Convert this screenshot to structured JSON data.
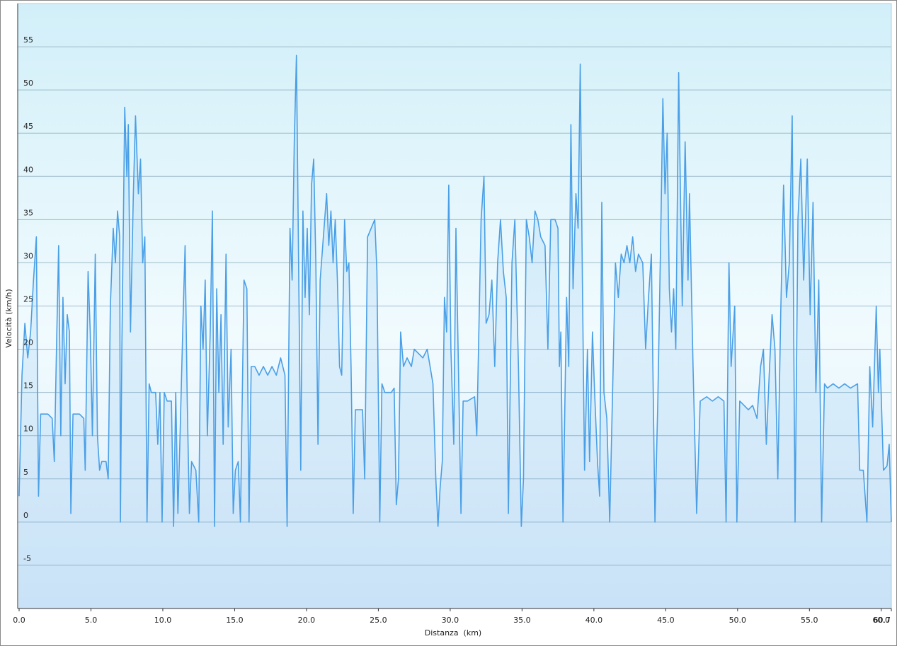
{
  "chart_data": {
    "type": "area",
    "x_label": "Distanza  (km)",
    "y_label": "Velocità (km/h)",
    "xlim": [
      0,
      60.7
    ],
    "ylim": [
      -10,
      60
    ],
    "xticks": [
      {
        "value": 0,
        "label": "0.0"
      },
      {
        "value": 5,
        "label": "5.0"
      },
      {
        "value": 10,
        "label": "10.0"
      },
      {
        "value": 15,
        "label": "15.0"
      },
      {
        "value": 20,
        "label": "20.0"
      },
      {
        "value": 25,
        "label": "25.0"
      },
      {
        "value": 30,
        "label": "30.0"
      },
      {
        "value": 35,
        "label": "35.0"
      },
      {
        "value": 40,
        "label": "40.0"
      },
      {
        "value": 45,
        "label": "45.0"
      },
      {
        "value": 50,
        "label": "50.0"
      },
      {
        "value": 55,
        "label": "55.0"
      },
      {
        "value": 60,
        "label": "60.0"
      },
      {
        "value": 60.7,
        "label": "60.7"
      }
    ],
    "yticks": [
      -5,
      0,
      5,
      10,
      15,
      20,
      25,
      30,
      35,
      40,
      45,
      50,
      55
    ],
    "grid": true,
    "color": "#4a9fe6",
    "x": [
      0,
      0.2,
      0.4,
      0.6,
      0.8,
      1.0,
      1.2,
      1.35,
      1.5,
      2.0,
      2.3,
      2.45,
      2.6,
      2.75,
      2.9,
      3.05,
      3.2,
      3.35,
      3.5,
      3.6,
      3.75,
      4.2,
      4.5,
      4.6,
      4.8,
      4.95,
      5.1,
      5.3,
      5.45,
      5.6,
      5.75,
      6.05,
      6.2,
      6.35,
      6.55,
      6.7,
      6.85,
      7.0,
      7.05,
      7.15,
      7.35,
      7.5,
      7.6,
      7.75,
      7.95,
      8.1,
      8.3,
      8.45,
      8.6,
      8.75,
      8.9,
      9.05,
      9.2,
      9.5,
      9.65,
      9.8,
      9.95,
      10.1,
      10.3,
      10.6,
      10.75,
      10.9,
      11.05,
      11.2,
      11.4,
      11.55,
      11.7,
      11.85,
      12.0,
      12.3,
      12.5,
      12.65,
      12.8,
      12.95,
      13.1,
      13.3,
      13.45,
      13.6,
      13.75,
      13.9,
      14.05,
      14.2,
      14.4,
      14.55,
      14.75,
      14.9,
      15.05,
      15.25,
      15.4,
      15.65,
      15.85,
      16.0,
      16.15,
      16.4,
      16.7,
      17.0,
      17.3,
      17.6,
      17.9,
      18.2,
      18.5,
      18.65,
      18.85,
      19.0,
      19.15,
      19.3,
      19.45,
      19.6,
      19.75,
      19.9,
      20.05,
      20.2,
      20.35,
      20.5,
      20.65,
      20.8,
      20.95,
      21.4,
      21.55,
      21.7,
      21.85,
      22.0,
      22.15,
      22.3,
      22.45,
      22.65,
      22.8,
      22.95,
      23.1,
      23.25,
      23.4,
      23.9,
      24.05,
      24.25,
      24.75,
      24.9,
      25.1,
      25.25,
      25.45,
      25.9,
      26.1,
      26.25,
      26.4,
      26.55,
      26.75,
      27.0,
      27.3,
      27.5,
      28.1,
      28.4,
      28.6,
      28.8,
      29.0,
      29.15,
      29.3,
      29.45,
      29.6,
      29.75,
      29.9,
      30.05,
      30.25,
      30.4,
      30.55,
      30.75,
      30.9,
      31.2,
      31.7,
      31.85,
      32.15,
      32.35,
      32.5,
      32.7,
      32.9,
      33.1,
      33.3,
      33.5,
      33.7,
      33.9,
      34.05,
      34.3,
      34.5,
      34.75,
      34.95,
      35.1,
      35.3,
      35.5,
      35.7,
      35.9,
      36.1,
      36.3,
      36.6,
      36.8,
      37.0,
      37.3,
      37.5,
      37.6,
      37.7,
      37.85,
      38.1,
      38.25,
      38.4,
      38.55,
      38.75,
      38.9,
      39.05,
      39.2,
      39.35,
      39.55,
      39.7,
      39.9,
      40.05,
      40.25,
      40.4,
      40.55,
      40.7,
      40.9,
      41.1,
      41.3,
      41.5,
      41.7,
      41.9,
      42.1,
      42.3,
      42.5,
      42.7,
      42.9,
      43.1,
      43.4,
      43.6,
      43.8,
      44.0,
      44.25,
      44.45,
      44.65,
      44.8,
      44.95,
      45.1,
      45.25,
      45.4,
      45.55,
      45.7,
      45.9,
      46.05,
      46.15,
      46.35,
      46.55,
      46.65,
      46.9,
      47.15,
      47.4,
      47.85,
      48.25,
      48.65,
      49.05,
      49.2,
      49.4,
      49.55,
      49.8,
      49.95,
      50.15,
      50.45,
      50.75,
      51.05,
      51.35,
      51.6,
      51.8,
      52.0,
      52.2,
      52.4,
      52.6,
      52.8,
      53.0,
      53.2,
      53.4,
      53.6,
      53.8,
      54.0,
      54.2,
      54.4,
      54.6,
      54.85,
      55.05,
      55.25,
      55.45,
      55.65,
      55.85,
      56.05,
      56.25,
      56.65,
      57.05,
      57.45,
      57.85,
      58.35,
      58.5,
      58.75,
      59.0,
      59.2,
      59.4,
      59.65,
      59.8,
      59.9,
      60.15,
      60.4,
      60.55,
      60.7
    ],
    "values": [
      3,
      17,
      23,
      19,
      22,
      28,
      33,
      3,
      12.5,
      12.5,
      12,
      7,
      20,
      32,
      10,
      26,
      16,
      24,
      22,
      1,
      12.5,
      12.5,
      12,
      6,
      29,
      22,
      10,
      31,
      10,
      6,
      7,
      7,
      5,
      25,
      34,
      30,
      36,
      33,
      0,
      20,
      48,
      40,
      46,
      22,
      38,
      47,
      38,
      42,
      30,
      33,
      0,
      16,
      15,
      15,
      9,
      15,
      0,
      15,
      14,
      14,
      -0.5,
      15,
      1,
      10,
      23,
      32,
      14,
      1,
      7,
      6,
      0,
      25,
      20,
      28,
      10,
      22,
      36,
      -0.5,
      27,
      15,
      24,
      9,
      31,
      11,
      20,
      1,
      6,
      7,
      0,
      28,
      27,
      0,
      18,
      18,
      17,
      18,
      17,
      18,
      17,
      19,
      17,
      -0.5,
      34,
      28,
      44,
      54,
      30,
      6,
      36,
      26,
      34,
      24,
      39,
      42,
      30,
      9,
      28,
      38,
      32,
      36,
      30,
      35,
      28,
      18,
      17,
      35,
      29,
      30,
      18,
      1,
      13,
      13,
      5,
      33,
      35,
      29,
      0,
      16,
      15,
      15,
      15.5,
      2,
      5,
      22,
      18,
      19,
      18,
      20,
      19,
      20,
      18,
      16,
      5,
      -0.5,
      4,
      7,
      26,
      22,
      39,
      20,
      9,
      34,
      20,
      1,
      14,
      14,
      14.5,
      10,
      35,
      40,
      23,
      24,
      28,
      18,
      30,
      35,
      29,
      26,
      1,
      30,
      35,
      18,
      -0.5,
      5,
      35,
      33,
      30,
      36,
      35,
      33,
      32,
      20,
      35,
      35,
      34,
      18,
      22,
      0,
      26,
      18,
      46,
      27,
      38,
      34,
      53,
      28,
      6,
      20,
      7,
      22,
      15,
      7,
      3,
      37,
      15,
      12,
      0,
      15,
      30,
      26,
      31,
      30,
      32,
      30,
      33,
      29,
      31,
      30,
      20,
      26,
      31,
      0,
      14,
      33,
      49,
      38,
      45,
      27,
      22,
      27,
      20,
      52,
      35,
      25,
      44,
      28,
      38,
      18,
      1,
      14,
      14.5,
      14,
      14.5,
      14,
      0,
      30,
      18,
      25,
      0,
      14,
      13.5,
      13,
      13.5,
      12,
      18,
      20,
      9,
      17,
      24,
      20,
      5,
      24,
      39,
      26,
      30,
      47,
      0,
      35,
      42,
      28,
      42,
      24,
      37,
      15,
      28,
      0,
      16,
      15.5,
      16,
      15.5,
      16,
      15.5,
      16,
      6,
      6,
      0,
      18,
      11,
      25,
      15,
      20,
      6,
      6.5,
      9,
      0
    ]
  }
}
